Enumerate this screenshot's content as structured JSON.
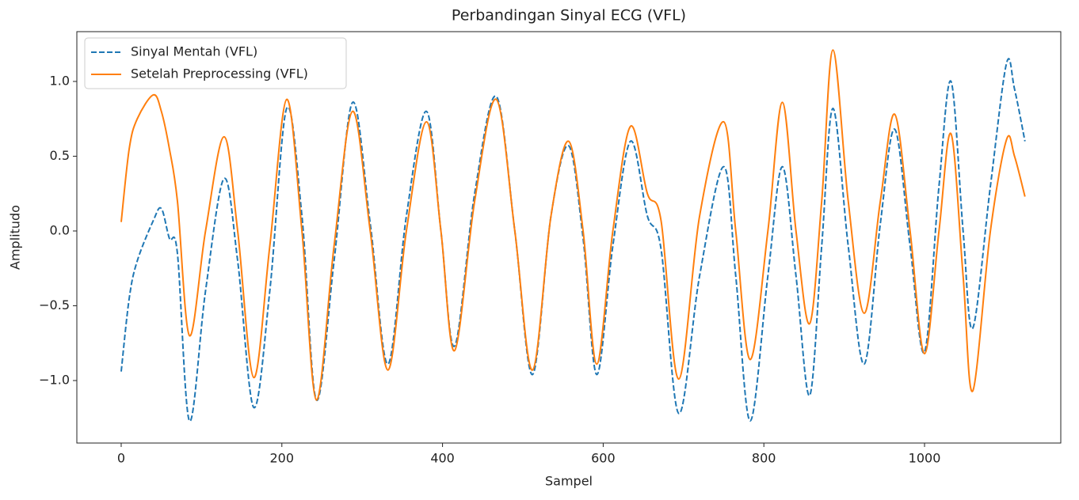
{
  "chart_data": {
    "type": "line",
    "title": "Perbandingan Sinyal ECG (VFL)",
    "x_label": "Sampel",
    "y_label": "Amplitudo",
    "x": [
      0,
      10,
      20,
      40,
      50,
      60,
      70,
      85,
      105,
      128,
      145,
      165,
      185,
      206,
      225,
      243,
      265,
      288,
      310,
      332,
      355,
      380,
      398,
      415,
      440,
      467,
      490,
      512,
      535,
      557,
      575,
      592,
      612,
      634,
      655,
      672,
      694,
      720,
      750,
      765,
      783,
      805,
      823,
      840,
      857,
      872,
      886,
      905,
      925,
      945,
      963,
      982,
      1000,
      1018,
      1033,
      1048,
      1060,
      1082,
      1102,
      1112,
      1125
    ],
    "series": [
      {
        "name": "Sinyal Mentah (VFL)",
        "color": "#1f77b4",
        "linestyle": "dashed",
        "values": [
          -0.94,
          -0.45,
          -0.2,
          0.07,
          0.15,
          -0.05,
          -0.15,
          -1.27,
          -0.4,
          0.35,
          -0.2,
          -1.18,
          -0.4,
          0.82,
          0.1,
          -1.13,
          -0.2,
          0.86,
          0.05,
          -0.89,
          0.1,
          0.8,
          0.0,
          -0.77,
          0.25,
          0.9,
          0.0,
          -0.96,
          0.1,
          0.57,
          -0.05,
          -0.96,
          -0.1,
          0.6,
          0.1,
          -0.12,
          -1.22,
          -0.3,
          0.43,
          -0.3,
          -1.27,
          -0.3,
          0.43,
          -0.3,
          -1.1,
          -0.1,
          0.82,
          -0.1,
          -0.89,
          0.05,
          0.68,
          -0.1,
          -0.81,
          0.3,
          1.0,
          0.0,
          -0.65,
          0.3,
          1.12,
          0.95,
          0.6
        ]
      },
      {
        "name": "Setelah Preprocessing (VFL)",
        "color": "#ff7f0e",
        "linestyle": "solid",
        "values": [
          0.06,
          0.55,
          0.75,
          0.91,
          0.8,
          0.55,
          0.2,
          -0.7,
          0.0,
          0.63,
          0.0,
          -0.98,
          -0.1,
          0.88,
          0.0,
          -1.13,
          -0.1,
          0.8,
          0.0,
          -0.93,
          0.0,
          0.73,
          0.0,
          -0.8,
          0.2,
          0.88,
          0.0,
          -0.93,
          0.1,
          0.6,
          0.0,
          -0.89,
          0.0,
          0.7,
          0.25,
          0.07,
          -0.99,
          0.1,
          0.73,
          0.0,
          -0.86,
          0.0,
          0.86,
          0.0,
          -0.62,
          0.2,
          1.21,
          0.2,
          -0.55,
          0.2,
          0.78,
          0.0,
          -0.82,
          0.0,
          0.65,
          -0.3,
          -1.07,
          0.0,
          0.61,
          0.5,
          0.23
        ]
      }
    ],
    "xlim": [
      -55.2,
      1169.6
    ],
    "xticks": [
      0,
      200,
      400,
      600,
      800,
      1000
    ],
    "ylim": [
      -1.418,
      1.333
    ],
    "yticks": [
      {
        "value": -1.0,
        "label": "−1.0"
      },
      {
        "value": -0.5,
        "label": "−0.5"
      },
      {
        "value": 0,
        "label": "0.0"
      },
      {
        "value": 0.5,
        "label": "0.5"
      },
      {
        "value": 1.0,
        "label": "1.0"
      }
    ],
    "legend": "upper left",
    "grid": false
  }
}
